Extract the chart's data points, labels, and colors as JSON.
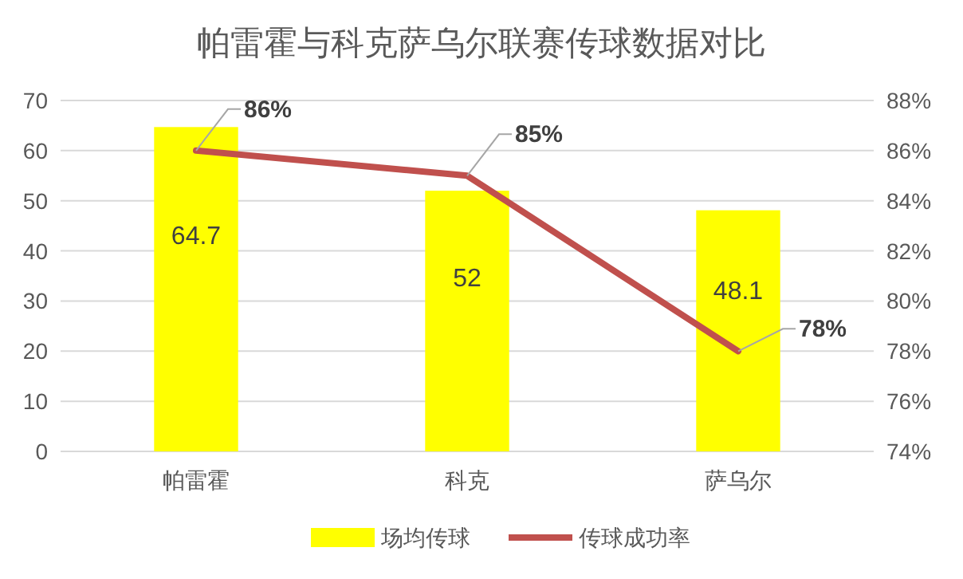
{
  "chart_data": {
    "type": "bar",
    "title": "帕雷霍与科克萨乌尔联赛传球数据对比",
    "categories": [
      "帕雷霍",
      "科克",
      "萨乌尔"
    ],
    "series": [
      {
        "name": "场均传球",
        "color": "#ffff00",
        "values": [
          64.7,
          52,
          48.1
        ],
        "value_labels": [
          "64.7",
          "52",
          "48.1"
        ]
      },
      {
        "name": "传球成功率",
        "type": "line",
        "axis": "y2",
        "color": "#c0504d",
        "values": [
          86,
          85,
          78
        ],
        "value_labels": [
          "86%",
          "85%",
          "78%"
        ]
      }
    ],
    "ylim": [
      0,
      70
    ],
    "yticks": [
      0,
      10,
      20,
      30,
      40,
      50,
      60,
      70
    ],
    "y2lim": [
      74,
      88
    ],
    "y2ticks": [
      {
        "value": 74,
        "label": "74%"
      },
      {
        "value": 76,
        "label": "76%"
      },
      {
        "value": 78,
        "label": "78%"
      },
      {
        "value": 80,
        "label": "80%"
      },
      {
        "value": 82,
        "label": "82%"
      },
      {
        "value": 84,
        "label": "84%"
      },
      {
        "value": 86,
        "label": "86%"
      },
      {
        "value": 88,
        "label": "88%"
      }
    ],
    "grid": "y",
    "legend": "bottom",
    "marker": "none",
    "line_style": "solid"
  }
}
